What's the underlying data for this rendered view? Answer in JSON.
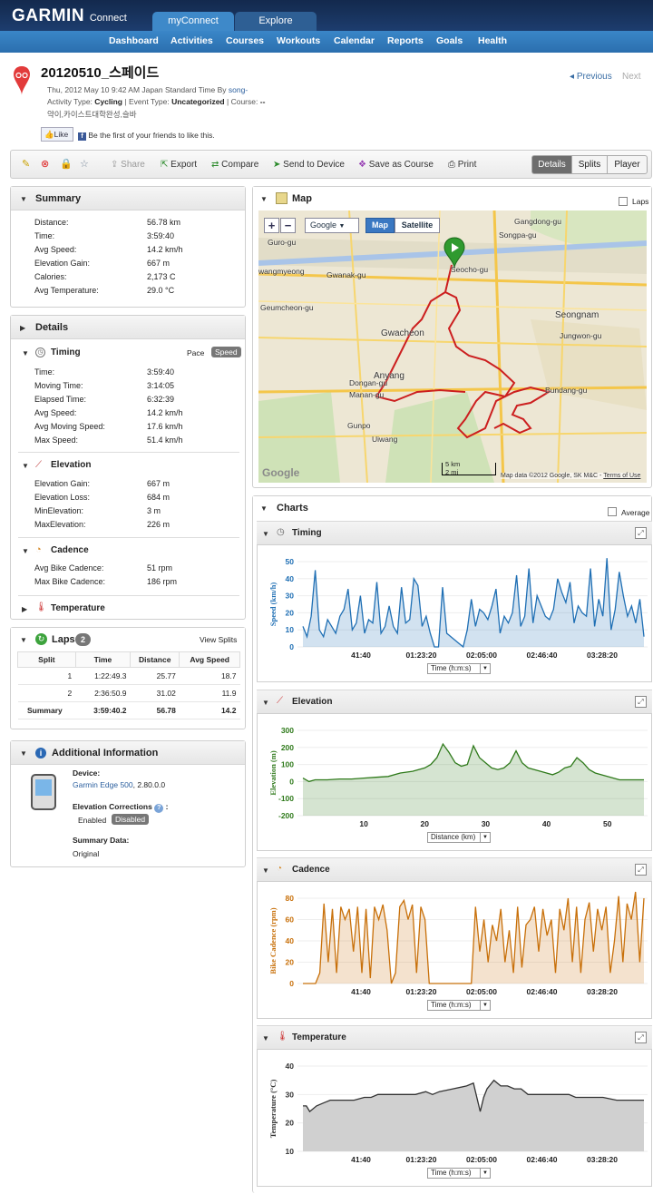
{
  "brand": {
    "logo": "GARMIN",
    "product": "Connect"
  },
  "top_tabs": [
    "myConnect",
    "Explore"
  ],
  "nav": [
    "Dashboard",
    "Activities",
    "Courses",
    "Workouts",
    "Calendar",
    "Reports",
    "Goals",
    "Health"
  ],
  "activity": {
    "title": "20120510_스페이드",
    "date_line": "Thu, 2012 May 10 9:42 AM Japan Standard Time By",
    "user": "song-",
    "type_label": "Activity Type:",
    "type": "Cycling",
    "event_label": "| Event Type:",
    "event": "Uncategorized",
    "course_label": "| Course:",
    "course": "--",
    "tags": "약이,카이스트대학완성,슬바",
    "like": "Like",
    "like_text": "Be the first of your friends to like this."
  },
  "pager": {
    "previous": "Previous",
    "next": "Next"
  },
  "toolbar": {
    "share": "Share",
    "export": "Export",
    "compare": "Compare",
    "send": "Send to Device",
    "save_course": "Save as Course",
    "print": "Print"
  },
  "views": [
    "Details",
    "Splits",
    "Player"
  ],
  "summary": {
    "title": "Summary",
    "rows": [
      [
        "Distance:",
        "56.78 km"
      ],
      [
        "Time:",
        "3:59:40"
      ],
      [
        "Avg Speed:",
        "14.2 km/h"
      ],
      [
        "Elevation Gain:",
        "667 m"
      ],
      [
        "Calories:",
        "2,173 C"
      ],
      [
        "Avg Temperature:",
        "29.0 °C"
      ]
    ]
  },
  "details": {
    "title": "Details",
    "timing": {
      "title": "Timing",
      "pace": "Pace",
      "speed": "Speed",
      "rows": [
        [
          "Time:",
          "3:59:40"
        ],
        [
          "Moving Time:",
          "3:14:05"
        ],
        [
          "Elapsed Time:",
          "6:32:39"
        ],
        [
          "Avg Speed:",
          "14.2 km/h"
        ],
        [
          "Avg Moving Speed:",
          "17.6 km/h"
        ],
        [
          "Max Speed:",
          "51.4 km/h"
        ]
      ]
    },
    "elevation": {
      "title": "Elevation",
      "rows": [
        [
          "Elevation Gain:",
          "667 m"
        ],
        [
          "Elevation Loss:",
          "684 m"
        ],
        [
          "MinElevation:",
          "3 m"
        ],
        [
          "MaxElevation:",
          "226 m"
        ]
      ]
    },
    "cadence": {
      "title": "Cadence",
      "rows": [
        [
          "Avg Bike Cadence:",
          "51 rpm"
        ],
        [
          "Max Bike Cadence:",
          "186 rpm"
        ]
      ]
    },
    "temperature": {
      "title": "Temperature"
    }
  },
  "laps": {
    "title": "Laps",
    "count": "2",
    "view_splits": "View Splits",
    "headers": [
      "Split",
      "Time",
      "Distance",
      "Avg Speed"
    ],
    "rows": [
      [
        "1",
        "1:22:49.3",
        "25.77",
        "18.7"
      ],
      [
        "2",
        "2:36:50.9",
        "31.02",
        "11.9"
      ],
      [
        "Summary",
        "3:59:40.2",
        "56.78",
        "14.2"
      ]
    ]
  },
  "additional": {
    "title": "Additional Information",
    "device_label": "Device:",
    "device_name": "Garmin Edge 500",
    "device_version": ", 2.80.0.0",
    "elev_corr_label": "Elevation Corrections",
    "elev_corr_colon": ":",
    "enabled": "Enabled",
    "disabled": "Disabled",
    "summary_label": "Summary Data:",
    "summary_value": "Original"
  },
  "map": {
    "title": "Map",
    "laps": "Laps",
    "provider": "Google",
    "map_btn": "Map",
    "satellite_btn": "Satellite",
    "places": [
      "Gangdong-gu",
      "Songpa-gu",
      "Guro-gu",
      "Seocho-gu",
      "wangmyeong",
      "Gwanak-gu",
      "Seongnam",
      "Geumcheon-gu",
      "Gwacheon",
      "Jungwon-gu",
      "Anyang",
      "Dongan-gu",
      "Manan-gu",
      "Bundang-gu",
      "Gunpo",
      "Uiwang"
    ],
    "scale_km": "5 km",
    "scale_mi": "2 mi",
    "attribution": "Map data ©2012 Google, SK M&C",
    "terms": "Terms of Use",
    "watermark": "Google"
  },
  "charts_title": "Charts",
  "average": "Average",
  "colors": {
    "speed": "#1f6fb4",
    "elevation": "#2f7a1b",
    "cadence": "#c8700a",
    "temperature": "#333333"
  },
  "chart_data": [
    {
      "type": "area",
      "title": "Timing",
      "ylabel": "Speed (km/h)",
      "ylim": [
        0,
        50
      ],
      "yticks": [
        0,
        10,
        20,
        30,
        40,
        50
      ],
      "xticks": [
        "41:40",
        "01:23:20",
        "02:05:00",
        "02:46:40",
        "03:28:20"
      ],
      "xaxis_select": "Time (h:m:s)",
      "series": [
        {
          "values": [
            12,
            6,
            18,
            45,
            10,
            6,
            16,
            12,
            8,
            18,
            22,
            34,
            10,
            14,
            30,
            8,
            16,
            14,
            38,
            8,
            12,
            24,
            12,
            8,
            35,
            14,
            16,
            40,
            36,
            12,
            18,
            8,
            0,
            0,
            35,
            8,
            6,
            4,
            2,
            0,
            10,
            28,
            12,
            22,
            20,
            16,
            24,
            34,
            8,
            18,
            14,
            20,
            42,
            12,
            18,
            46,
            14,
            30,
            24,
            18,
            16,
            22,
            40,
            32,
            26,
            38,
            14,
            24,
            20,
            18,
            46,
            12,
            28,
            18,
            52,
            10,
            22,
            44,
            30,
            18,
            24,
            14,
            28,
            6
          ]
        }
      ]
    },
    {
      "type": "area",
      "title": "Elevation",
      "ylabel": "Elevation (m)",
      "ylim": [
        -200,
        300
      ],
      "yticks": [
        -200,
        -100,
        0,
        100,
        200,
        300
      ],
      "xticks": [
        "10",
        "20",
        "30",
        "40",
        "50"
      ],
      "xaxis_select": "Distance (km)",
      "series": [
        {
          "x": [
            0,
            1,
            2,
            4,
            6,
            8,
            10,
            12,
            14,
            16,
            18,
            20,
            21,
            22,
            23,
            24,
            25,
            26,
            27,
            28,
            29,
            30,
            31,
            32,
            33,
            34,
            35,
            36,
            37,
            38,
            39,
            40,
            41,
            42,
            43,
            44,
            45,
            46,
            47,
            48,
            50,
            52,
            54,
            56
          ],
          "values": [
            20,
            0,
            10,
            10,
            15,
            15,
            20,
            25,
            30,
            50,
            60,
            80,
            100,
            140,
            220,
            170,
            110,
            90,
            100,
            210,
            140,
            110,
            80,
            70,
            80,
            110,
            180,
            110,
            80,
            70,
            60,
            50,
            40,
            55,
            80,
            90,
            140,
            110,
            70,
            50,
            30,
            10,
            10,
            10
          ]
        }
      ]
    },
    {
      "type": "area",
      "title": "Cadence",
      "ylabel": "Bike Cadence (rpm)",
      "ylim": [
        0,
        80
      ],
      "yticks": [
        0,
        20,
        40,
        60,
        80
      ],
      "xticks": [
        "41:40",
        "01:23:20",
        "02:05:00",
        "02:46:40",
        "03:28:20"
      ],
      "xaxis_select": "Time (h:m:s)",
      "series": [
        {
          "values": [
            0,
            0,
            0,
            0,
            10,
            75,
            20,
            70,
            10,
            72,
            60,
            70,
            30,
            72,
            10,
            70,
            5,
            72,
            60,
            74,
            50,
            0,
            10,
            72,
            78,
            60,
            74,
            10,
            72,
            60,
            0,
            0,
            0,
            0,
            0,
            0,
            0,
            0,
            0,
            0,
            0,
            72,
            30,
            60,
            20,
            55,
            40,
            70,
            20,
            50,
            10,
            72,
            15,
            55,
            60,
            72,
            30,
            70,
            45,
            60,
            10,
            70,
            50,
            80,
            20,
            72,
            10,
            60,
            76,
            30,
            70,
            50,
            72,
            10,
            40,
            82,
            20,
            75,
            60,
            86,
            20,
            80
          ]
        }
      ]
    },
    {
      "type": "area",
      "title": "Temperature",
      "ylabel": "Temperature (°C)",
      "ylim": [
        10,
        40
      ],
      "yticks": [
        10,
        20,
        30,
        40
      ],
      "xticks": [
        "41:40",
        "01:23:20",
        "02:05:00",
        "02:46:40",
        "03:28:20"
      ],
      "xaxis_select": "Time (h:m:s)",
      "series": [
        {
          "x": [
            0,
            1,
            2,
            4,
            6,
            8,
            10,
            12,
            15,
            18,
            20,
            22,
            25,
            28,
            30,
            33,
            36,
            38,
            40,
            44,
            48,
            50,
            52,
            53,
            54,
            56,
            58,
            60,
            62,
            64,
            66,
            70,
            74,
            78,
            80,
            84,
            88,
            92,
            96,
            100
          ],
          "values": [
            26,
            26,
            24,
            26,
            27,
            28,
            28,
            28,
            28,
            29,
            29,
            30,
            30,
            30,
            30,
            30,
            31,
            30,
            31,
            32,
            33,
            34,
            24,
            29,
            32,
            35,
            33,
            33,
            32,
            32,
            30,
            30,
            30,
            30,
            29,
            29,
            29,
            28,
            28,
            28
          ]
        }
      ]
    }
  ]
}
